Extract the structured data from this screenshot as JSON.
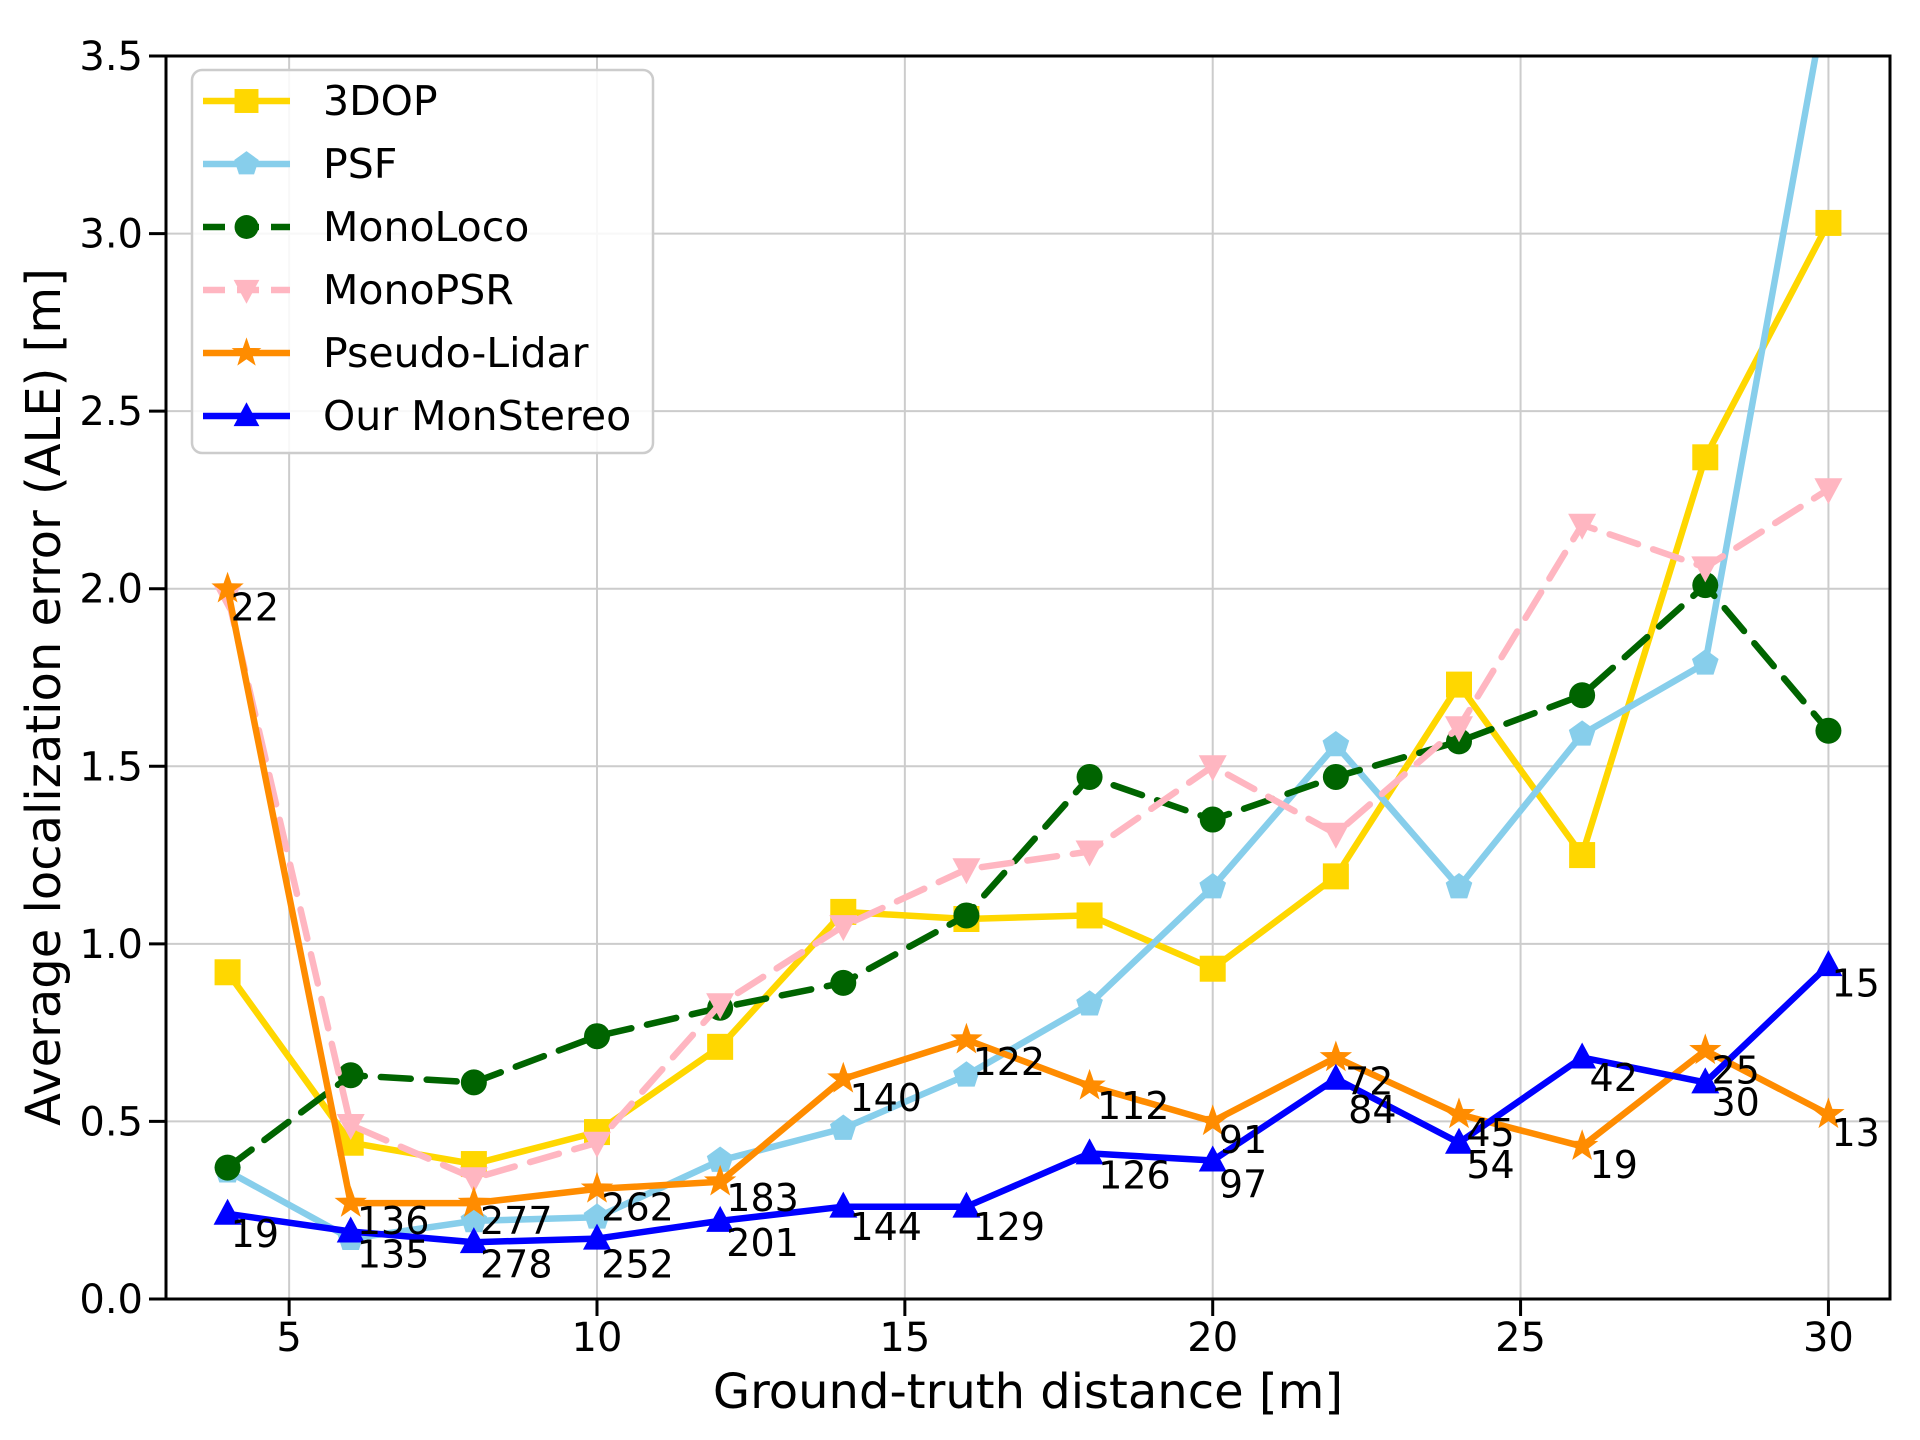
{
  "figure": {
    "background": "#ffffff",
    "text_color": "#000000",
    "grid_color": "#cccccc",
    "spine_color": "#000000",
    "legend_border_color": "#cccccc",
    "legend_background": "#ffffff"
  },
  "chart_data": {
    "type": "line",
    "title": "",
    "xlabel": "Ground-truth distance [m]",
    "ylabel": "Average localization error (ALE) [m]",
    "xlim": [
      3,
      31
    ],
    "ylim": [
      0,
      3.5
    ],
    "grid": true,
    "legend_position": "upper-left",
    "x_ticks": [
      5,
      10,
      15,
      20,
      25,
      30
    ],
    "y_ticks": [
      0.0,
      0.5,
      1.0,
      1.5,
      2.0,
      2.5,
      3.0,
      3.5
    ],
    "x": [
      4,
      6,
      8,
      10,
      12,
      14,
      16,
      18,
      20,
      22,
      24,
      26,
      28,
      30
    ],
    "series": [
      {
        "name": "3DOP",
        "color": "#FFD700",
        "marker": "square",
        "dash": "solid",
        "values": [
          0.92,
          0.44,
          0.38,
          0.47,
          0.71,
          1.09,
          1.07,
          1.08,
          0.93,
          1.19,
          1.73,
          1.25,
          2.37,
          3.03
        ]
      },
      {
        "name": "PSF",
        "color": "#87CEEB",
        "marker": "pentagon",
        "dash": "solid",
        "values": [
          0.36,
          0.17,
          0.22,
          0.23,
          0.39,
          0.48,
          0.63,
          0.83,
          1.16,
          1.56,
          1.16,
          1.59,
          1.79,
          3.7
        ]
      },
      {
        "name": "MonoLoco",
        "color": "#006400",
        "marker": "circle",
        "dash": "dashed",
        "values": [
          0.37,
          0.63,
          0.61,
          0.74,
          0.82,
          0.89,
          1.08,
          1.47,
          1.35,
          1.47,
          1.57,
          1.7,
          2.01,
          1.6
        ]
      },
      {
        "name": "MonoPSR",
        "color": "#FFB6C1",
        "marker": "triangle-down",
        "dash": "dashed",
        "values": [
          1.98,
          0.49,
          0.34,
          0.44,
          0.83,
          1.05,
          1.21,
          1.26,
          1.5,
          1.31,
          1.61,
          2.18,
          2.06,
          2.28
        ]
      },
      {
        "name": "Pseudo-Lidar",
        "color": "#FF8C00",
        "marker": "star",
        "dash": "solid",
        "values": [
          2.0,
          0.27,
          0.27,
          0.31,
          0.33,
          0.62,
          0.73,
          0.6,
          0.5,
          0.68,
          0.52,
          0.43,
          0.7,
          0.52
        ]
      },
      {
        "name": "Our MonStereo",
        "color": "#0000FF",
        "marker": "triangle-up",
        "dash": "solid",
        "values": [
          0.24,
          0.19,
          0.16,
          0.17,
          0.22,
          0.26,
          0.26,
          0.41,
          0.39,
          0.62,
          0.44,
          0.68,
          0.61,
          0.94
        ]
      }
    ],
    "annotations": {
      "pseudo_lidar_counts": [
        {
          "x": 4.05,
          "y": 1.99,
          "label": "22"
        },
        {
          "x": 6.1,
          "y": 0.262,
          "label": "136"
        },
        {
          "x": 8.1,
          "y": 0.262,
          "label": "277"
        },
        {
          "x": 10.07,
          "y": 0.3,
          "label": "262"
        },
        {
          "x": 12.1,
          "y": 0.327,
          "label": "183"
        },
        {
          "x": 14.1,
          "y": 0.608,
          "label": "140"
        },
        {
          "x": 16.1,
          "y": 0.71,
          "label": "122"
        },
        {
          "x": 18.12,
          "y": 0.585,
          "label": "112"
        },
        {
          "x": 20.1,
          "y": 0.49,
          "label": "91"
        },
        {
          "x": 22.15,
          "y": 0.655,
          "label": "72"
        },
        {
          "x": 24.12,
          "y": 0.51,
          "label": "45"
        },
        {
          "x": 26.12,
          "y": 0.42,
          "label": "19"
        },
        {
          "x": 28.1,
          "y": 0.685,
          "label": "25"
        },
        {
          "x": 30.05,
          "y": 0.51,
          "label": "13"
        }
      ],
      "monstereo_counts": [
        {
          "x": 4.05,
          "y": 0.225,
          "label": "19"
        },
        {
          "x": 6.1,
          "y": 0.168,
          "label": "135"
        },
        {
          "x": 8.1,
          "y": 0.14,
          "label": "278"
        },
        {
          "x": 10.07,
          "y": 0.14,
          "label": "252"
        },
        {
          "x": 12.1,
          "y": 0.2,
          "label": "201"
        },
        {
          "x": 14.1,
          "y": 0.245,
          "label": "144"
        },
        {
          "x": 16.1,
          "y": 0.245,
          "label": "129"
        },
        {
          "x": 18.14,
          "y": 0.39,
          "label": "126"
        },
        {
          "x": 20.1,
          "y": 0.365,
          "label": "97"
        },
        {
          "x": 22.2,
          "y": 0.575,
          "label": "84"
        },
        {
          "x": 24.12,
          "y": 0.42,
          "label": "54"
        },
        {
          "x": 26.12,
          "y": 0.665,
          "label": "42"
        },
        {
          "x": 28.1,
          "y": 0.595,
          "label": "30"
        },
        {
          "x": 30.05,
          "y": 0.93,
          "label": "15"
        }
      ]
    }
  }
}
